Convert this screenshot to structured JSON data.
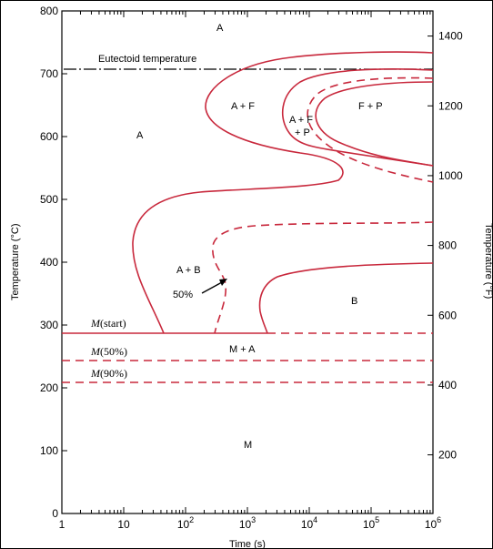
{
  "chart_data": {
    "type": "diagram",
    "xlabel": "Time (s)",
    "ylabel_left": "Temperature (°C)",
    "ylabel_right": "Temperature (°F)",
    "x_scale": "log",
    "xlim": [
      1,
      1000000
    ],
    "ylim_c": [
      0,
      800
    ],
    "x_ticks": [
      {
        "value": 1,
        "label": "1"
      },
      {
        "value": 10,
        "label": "10"
      },
      {
        "value": 100,
        "label": "10",
        "sup": "2"
      },
      {
        "value": 1000,
        "label": "10",
        "sup": "3"
      },
      {
        "value": 10000,
        "label": "10",
        "sup": "4"
      },
      {
        "value": 100000,
        "label": "10",
        "sup": "5"
      },
      {
        "value": 1000000,
        "label": "10",
        "sup": "6"
      }
    ],
    "y_ticks_c": [
      "0",
      "100",
      "200",
      "300",
      "400",
      "500",
      "600",
      "700",
      "800"
    ],
    "y_ticks_f": [
      "200",
      "400",
      "600",
      "800",
      "1000",
      "1200",
      "1400"
    ],
    "eutectoid_label": "Eutectoid temperature",
    "eutectoid_c": 727,
    "martensite_lines": [
      {
        "label_italic": "M",
        "label_rest": "(start)",
        "temp_c": 288,
        "style": "solid-then-dashed"
      },
      {
        "label_italic": "M",
        "label_rest": "(50%)",
        "temp_c": 243,
        "style": "dashed"
      },
      {
        "label_italic": "M",
        "label_rest": "(90%)",
        "temp_c": 212,
        "style": "dashed"
      }
    ],
    "regions": [
      "A",
      "A",
      "A + F",
      "A + F",
      "+ P",
      "F + P",
      "A + B",
      "50%",
      "B",
      "M + A",
      "M"
    ],
    "colors": {
      "curves": "#c8283c",
      "axes": "#000000"
    }
  }
}
